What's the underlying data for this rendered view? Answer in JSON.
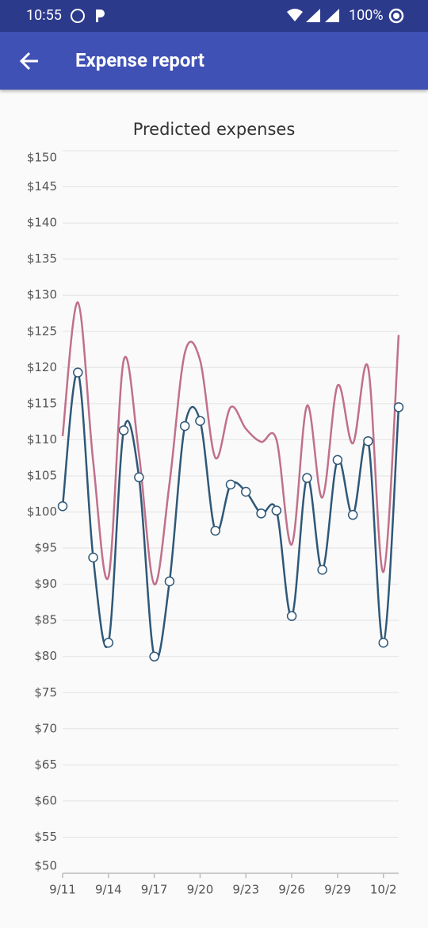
{
  "status_bar": {
    "time": "10:55",
    "battery": "100%"
  },
  "app_bar": {
    "title": "Expense report"
  },
  "chart_data": {
    "type": "line",
    "title": "Predicted expenses",
    "categories": [
      "9/11",
      null,
      null,
      "9/14",
      null,
      null,
      "9/17",
      null,
      null,
      "9/20",
      null,
      null,
      "9/23",
      null,
      null,
      "9/26",
      null,
      null,
      "9/29",
      null,
      null,
      "10/2",
      null
    ],
    "series": [
      {
        "color": "#c0708a",
        "markers": false,
        "values": [
          110.5,
          129,
          107,
          91,
          121,
          108,
          90,
          104,
          122,
          121,
          107.5,
          114.5,
          111.5,
          109.7,
          110,
          95.5,
          114.7,
          102,
          117.5,
          109.5,
          120,
          91.7,
          124.5
        ]
      },
      {
        "color": "#2f5878",
        "markers": true,
        "values": [
          100.8,
          119.3,
          93.7,
          81.9,
          111.3,
          104.8,
          80.0,
          90.4,
          111.9,
          112.6,
          97.4,
          103.8,
          102.8,
          99.8,
          100.2,
          85.6,
          104.7,
          92.0,
          107.2,
          99.6,
          109.8,
          81.9,
          114.5
        ]
      }
    ],
    "ylim": [
      50,
      150
    ],
    "yticks": [
      {
        "value": 50,
        "label": "$50"
      },
      {
        "value": 55,
        "label": "$55"
      },
      {
        "value": 60,
        "label": "$60"
      },
      {
        "value": 65,
        "label": "$65"
      },
      {
        "value": 70,
        "label": "$70"
      },
      {
        "value": 75,
        "label": "$75"
      },
      {
        "value": 80,
        "label": "$80"
      },
      {
        "value": 85,
        "label": "$85"
      },
      {
        "value": 90,
        "label": "$90"
      },
      {
        "value": 95,
        "label": "$95"
      },
      {
        "value": 100,
        "label": "$100"
      },
      {
        "value": 105,
        "label": "$105"
      },
      {
        "value": 110,
        "label": "$110"
      },
      {
        "value": 115,
        "label": "$115"
      },
      {
        "value": 120,
        "label": "$120"
      },
      {
        "value": 125,
        "label": "$125"
      },
      {
        "value": 130,
        "label": "$130"
      },
      {
        "value": 135,
        "label": "$135"
      },
      {
        "value": 140,
        "label": "$140"
      },
      {
        "value": 145,
        "label": "$145"
      },
      {
        "value": 150,
        "label": "$150"
      }
    ],
    "grid": true
  }
}
